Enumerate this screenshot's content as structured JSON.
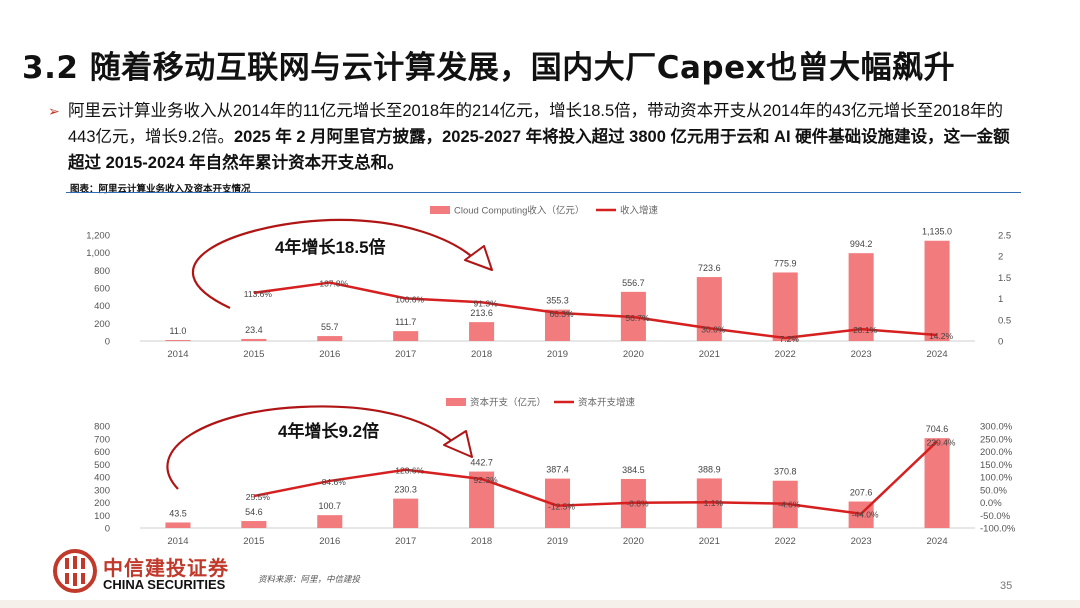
{
  "title": "3.2 随着移动互联网与云计算发展，国内大厂Capex也曾大幅飙升",
  "bullet": {
    "normal": "阿里云计算业务收入从2014年的11亿元增长至2018年的214亿元，增长18.5倍，带动资本开支从2014年的43亿元增长至2018年的443亿元，增长9.2倍。",
    "bold": "2025 年 2 月阿里官方披露，2025-2027 年将投入超过 3800 亿元用于云和 AI 硬件基础设施建设，这一金额超过 2015-2024 年自然年累计资本开支总和。"
  },
  "figure_caption": "图表：阿里云计算业务收入及资本开支情况",
  "source": "资料来源：阿里，中信建投",
  "page_number": "35",
  "logo": {
    "cn": "中信建投证券",
    "en": "CHINA SECURITIES"
  },
  "colors": {
    "bar": "#f27b7d",
    "line": "#d62020",
    "arrow": "#b01515",
    "rule": "#2f6cb3"
  },
  "chart_data": [
    {
      "type": "bar+line",
      "categories": [
        "2014",
        "2015",
        "2016",
        "2017",
        "2018",
        "2019",
        "2020",
        "2021",
        "2022",
        "2023",
        "2024"
      ],
      "legend_position": "top",
      "series": [
        {
          "name": "Cloud Computing收入（亿元）",
          "kind": "bar",
          "axis": "left",
          "values": [
            11.0,
            23.4,
            55.7,
            111.7,
            213.6,
            355.3,
            556.7,
            723.6,
            775.9,
            994.2,
            1135.0
          ],
          "labels": [
            "11.0",
            "23.4",
            "55.7",
            "111.7",
            "213.6",
            "355.3",
            "556.7",
            "723.6",
            "775.9",
            "994.2",
            "1,135.0"
          ]
        },
        {
          "name": "收入增速",
          "kind": "line",
          "axis": "right",
          "values": [
            null,
            1.136,
            1.378,
            1.006,
            0.913,
            0.663,
            0.567,
            0.3,
            0.072,
            0.281,
            0.142
          ],
          "labels": [
            "",
            "113.6%",
            "137.8%",
            "100.6%",
            "91.3%",
            "66.3%",
            "56.7%",
            "30.0%",
            "7.2%",
            "28.1%",
            "14.2%"
          ]
        }
      ],
      "ylim_left": [
        0,
        1200
      ],
      "yticks_left": [
        "0",
        "200",
        "400",
        "600",
        "800",
        "1,000",
        "1,200"
      ],
      "ylim_right": [
        0,
        2.5
      ],
      "yticks_right": [
        "0",
        "0.5",
        "1",
        "1.5",
        "2",
        "2.5"
      ],
      "annotation": "4年增长18.5倍"
    },
    {
      "type": "bar+line",
      "categories": [
        "2014",
        "2015",
        "2016",
        "2017",
        "2018",
        "2019",
        "2020",
        "2021",
        "2022",
        "2023",
        "2024"
      ],
      "legend_position": "top",
      "series": [
        {
          "name": "资本开支（亿元）",
          "kind": "bar",
          "axis": "left",
          "values": [
            43.5,
            54.6,
            100.7,
            230.3,
            442.7,
            387.4,
            384.5,
            388.9,
            370.8,
            207.6,
            704.6
          ],
          "labels": [
            "43.5",
            "54.6",
            "100.7",
            "230.3",
            "442.7",
            "387.4",
            "384.5",
            "388.9",
            "370.8",
            "207.6",
            "704.6"
          ]
        },
        {
          "name": "资本开支增速",
          "kind": "line",
          "axis": "right",
          "values": [
            null,
            0.255,
            0.846,
            1.286,
            0.923,
            -0.125,
            -0.008,
            0.011,
            -0.046,
            -0.44,
            2.394
          ],
          "labels": [
            "",
            "25.5%",
            "84.6%",
            "128.6%",
            "92.3%",
            "-12.5%",
            "-0.8%",
            "1.1%",
            "-4.6%",
            "-44.0%",
            "239.4%"
          ]
        }
      ],
      "ylim_left": [
        0,
        800
      ],
      "yticks_left": [
        "0",
        "100",
        "200",
        "300",
        "400",
        "500",
        "600",
        "700",
        "800"
      ],
      "ylim_right": [
        -1.0,
        3.0
      ],
      "yticks_right": [
        "-100.0%",
        "-50.0%",
        "0.0%",
        "50.0%",
        "100.0%",
        "150.0%",
        "200.0%",
        "250.0%",
        "300.0%"
      ],
      "annotation": "4年增长9.2倍"
    }
  ]
}
